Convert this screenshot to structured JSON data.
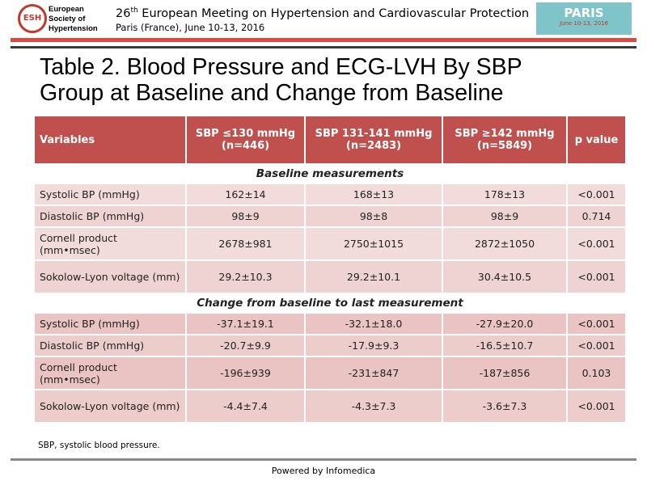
{
  "header": {
    "logo": "ESH",
    "org": [
      "European",
      "Society of",
      "Hypertension"
    ],
    "meeting_number": "26",
    "meeting_suffix": "th",
    "meeting_title": " European Meeting on Hypertension and Cardiovascular Protection",
    "location": "Paris (France), June 10-13, 2016",
    "badge": "PARIS",
    "badge_date": "June 10-13, 2016"
  },
  "title": [
    "Table 2. Blood Pressure and ECG-LVH By SBP",
    "Group at Baseline and Change from Baseline"
  ],
  "table": {
    "header": [
      [
        "Variables"
      ],
      [
        "SBP ≤130 mmHg",
        "(n=446)"
      ],
      [
        "SBP 131-141 mmHg",
        "(n=2483)"
      ],
      [
        "SBP ≥142 mmHg",
        "(n=5849)"
      ],
      [
        "p value"
      ]
    ],
    "sections": [
      {
        "label": "Baseline measurements",
        "rows": [
          [
            "Systolic BP (mmHg)",
            "162±14",
            "168±13",
            "178±13",
            "<0.001"
          ],
          [
            "Diastolic BP (mmHg)",
            "98±9",
            "98±8",
            "98±9",
            "0.714"
          ],
          [
            "Cornell product (mm•msec)",
            "2678±981",
            "2750±1015",
            "2872±1050",
            "<0.001"
          ],
          [
            "Sokolow-Lyon voltage (mm)",
            "29.2±10.3",
            "29.2±10.1",
            "30.4±10.5",
            "<0.001"
          ]
        ]
      },
      {
        "label": "Change from baseline to last measurement",
        "rows": [
          [
            "Systolic BP (mmHg)",
            "-37.1±19.1",
            "-32.1±18.0",
            "-27.9±20.0",
            "<0.001"
          ],
          [
            "Diastolic BP (mmHg)",
            "-20.7±9.9",
            "-17.9±9.3",
            "-16.5±10.7",
            "<0.001"
          ],
          [
            "Cornell product (mm•msec)",
            "-196±939",
            "-231±847",
            "-187±856",
            "0.103"
          ],
          [
            "Sokolow-Lyon voltage (mm)",
            "-4.4±7.4",
            "-4.3±7.3",
            "-3.6±7.3",
            "<0.001"
          ]
        ]
      }
    ]
  },
  "footnote": "SBP, systolic blood pressure.",
  "footer": "Powered by Infomedica"
}
